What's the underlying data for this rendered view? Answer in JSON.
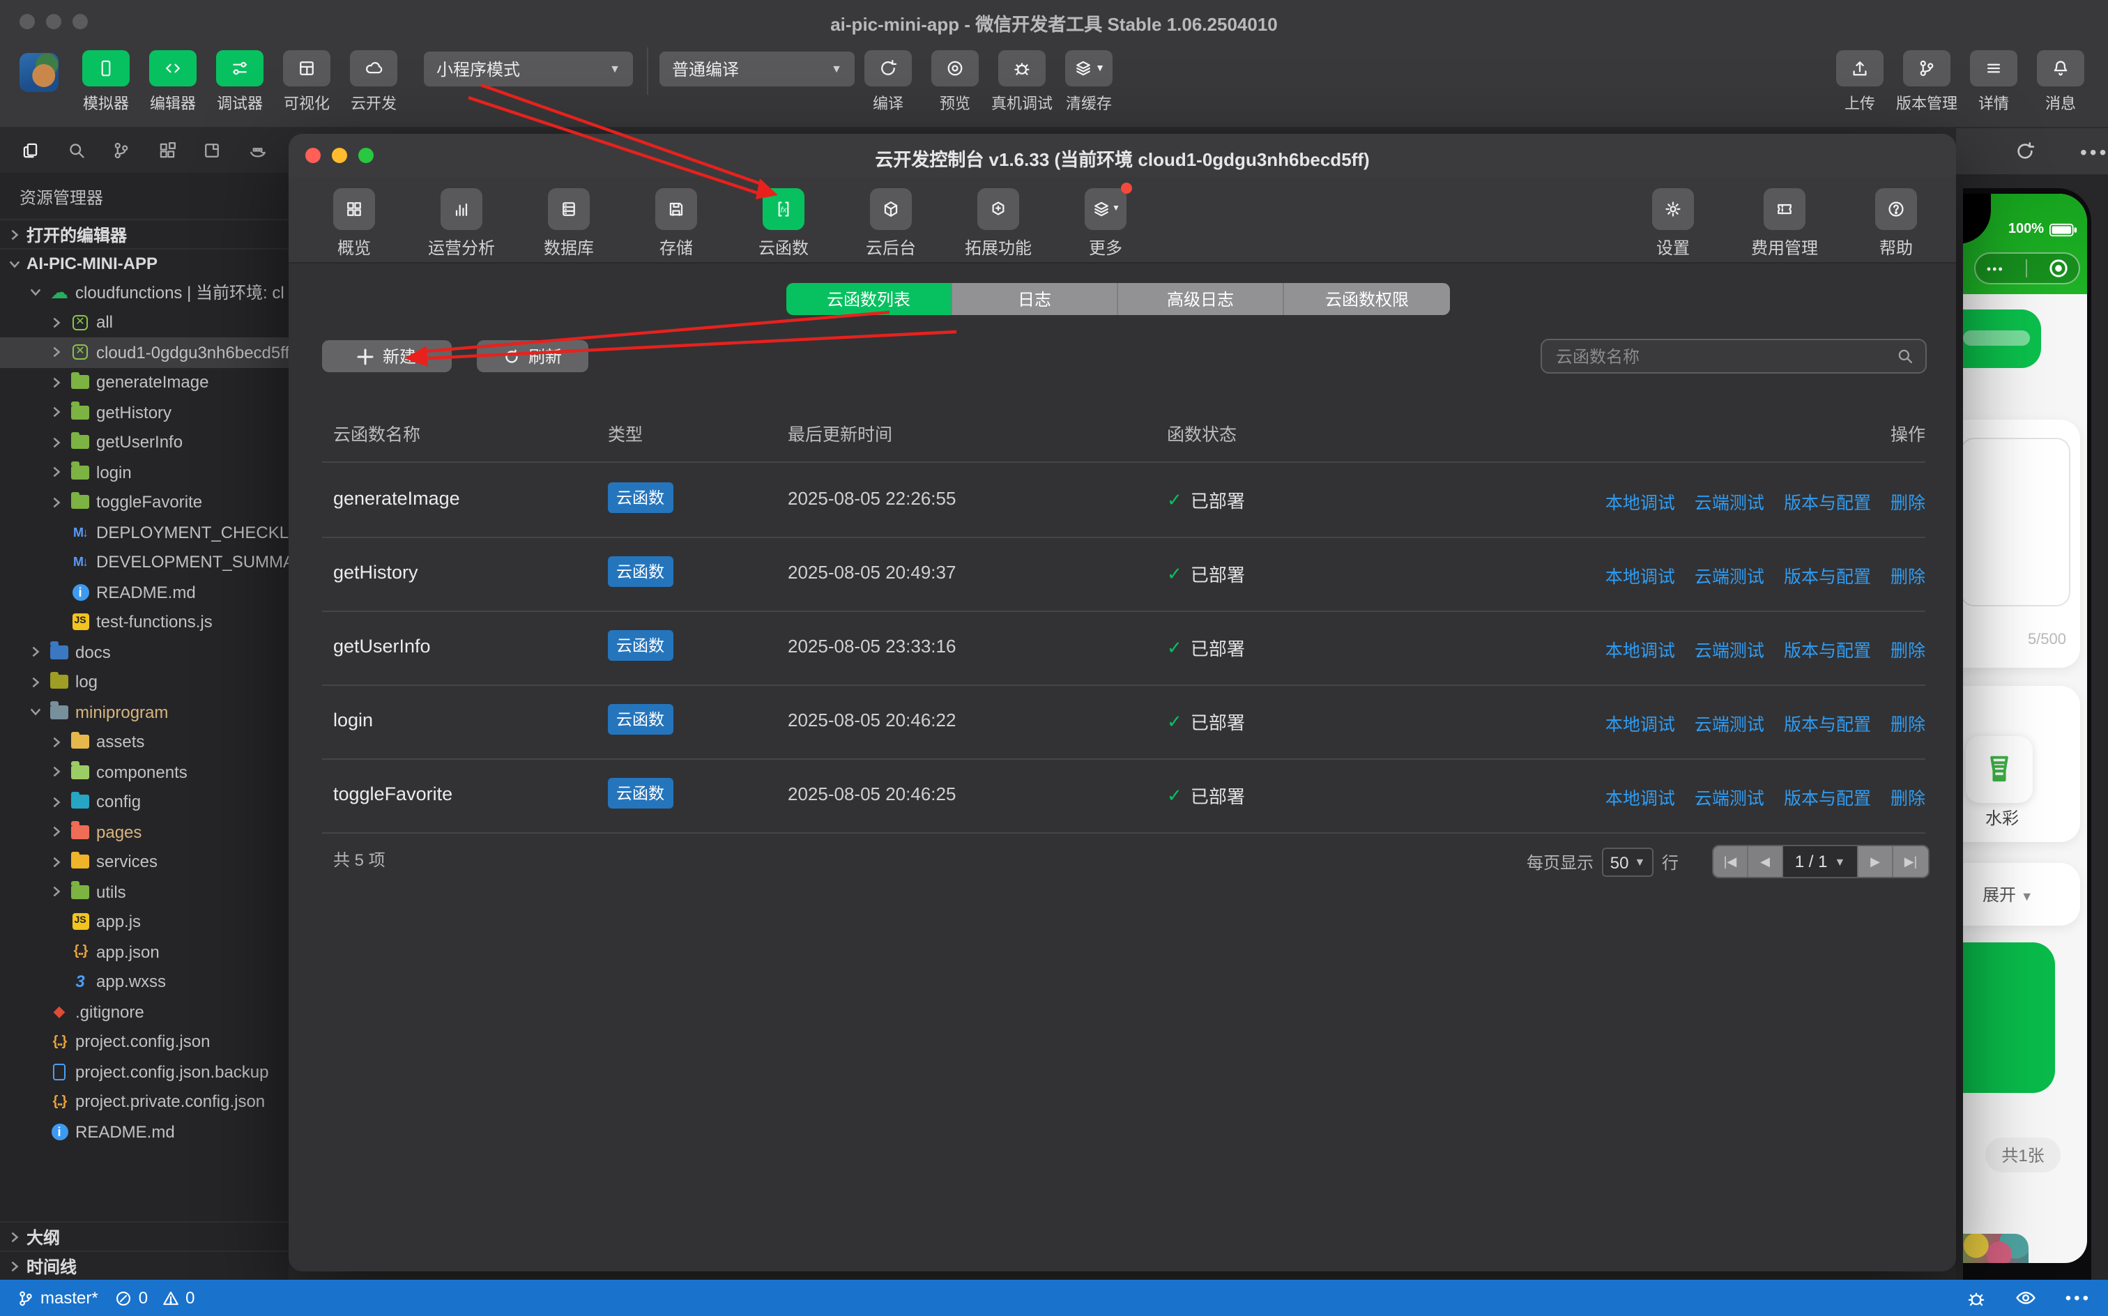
{
  "window": {
    "title": "ai-pic-mini-app - 微信开发者工具 Stable 1.06.2504010",
    "status_bar": {
      "branch": "master*",
      "errors": "0",
      "warnings": "0"
    }
  },
  "toolbar": {
    "left_tools": [
      {
        "name": "simulator",
        "icon": "phone-icon",
        "label": "模拟器",
        "active": true
      },
      {
        "name": "editor",
        "icon": "code-icon",
        "label": "编辑器",
        "active": true
      },
      {
        "name": "debugger",
        "icon": "tune-icon",
        "label": "调试器",
        "active": true
      },
      {
        "name": "visualizer",
        "icon": "layout-icon",
        "label": "可视化",
        "active": false
      },
      {
        "name": "cloud-dev",
        "icon": "cloud-icon",
        "label": "云开发",
        "active": false
      }
    ],
    "mode_select": {
      "value": "小程序模式"
    },
    "compile_select": {
      "value": "普通编译"
    },
    "compile_tools": [
      {
        "name": "compile",
        "icon": "refresh-icon",
        "label": "编译"
      },
      {
        "name": "preview",
        "icon": "eye-icon",
        "label": "预览"
      },
      {
        "name": "device-debug",
        "icon": "bug-icon",
        "label": "真机调试"
      },
      {
        "name": "clear-cache",
        "icon": "layers-icon",
        "label": "清缓存",
        "caret": true
      }
    ],
    "right_tools": [
      {
        "name": "upload",
        "icon": "upload-icon",
        "label": "上传"
      },
      {
        "name": "version-control",
        "icon": "branch-icon",
        "label": "版本管理"
      },
      {
        "name": "details",
        "icon": "menu-icon",
        "label": "详情"
      },
      {
        "name": "messages",
        "icon": "bell-icon",
        "label": "消息"
      }
    ]
  },
  "sidebar": {
    "panel_title": "资源管理器",
    "open_editors": "打开的编辑器",
    "project_name": "AI-PIC-MINI-APP",
    "outline": "大纲",
    "timeline": "时间线",
    "tree": [
      {
        "label": "cloudfunctions | 当前环境: cl",
        "icon": "cloud",
        "indent": 1,
        "chev": "down"
      },
      {
        "label": "all",
        "icon": "env",
        "indent": 2,
        "chev": "right"
      },
      {
        "label": "cloud1-0gdgu3nh6becd5ff",
        "icon": "env",
        "indent": 2,
        "chev": "right",
        "sel": true
      },
      {
        "label": "generateImage",
        "icon": "folder",
        "color": "#7cb342",
        "indent": 2,
        "chev": "right"
      },
      {
        "label": "getHistory",
        "icon": "folder",
        "color": "#7cb342",
        "indent": 2,
        "chev": "right"
      },
      {
        "label": "getUserInfo",
        "icon": "folder",
        "color": "#7cb342",
        "indent": 2,
        "chev": "right"
      },
      {
        "label": "login",
        "icon": "folder",
        "color": "#7cb342",
        "indent": 2,
        "chev": "right"
      },
      {
        "label": "toggleFavorite",
        "icon": "folder",
        "color": "#7cb342",
        "indent": 2,
        "chev": "right"
      },
      {
        "label": "DEPLOYMENT_CHECKLIST",
        "icon": "md",
        "indent": 2,
        "chev": "none"
      },
      {
        "label": "DEVELOPMENT_SUMMARY",
        "icon": "md",
        "indent": 2,
        "chev": "none"
      },
      {
        "label": "README.md",
        "icon": "info",
        "indent": 2,
        "chev": "none"
      },
      {
        "label": "test-functions.js",
        "icon": "js",
        "indent": 2,
        "chev": "none"
      },
      {
        "label": "docs",
        "icon": "folder",
        "color": "#3b78c2",
        "indent": 1,
        "chev": "right"
      },
      {
        "label": "log",
        "icon": "folder",
        "color": "#9e9d24",
        "indent": 1,
        "chev": "right"
      },
      {
        "label": "miniprogram",
        "icon": "folder",
        "color": "#78909c",
        "indent": 1,
        "chev": "down",
        "orange": true
      },
      {
        "label": "assets",
        "icon": "folder",
        "color": "#e6b84c",
        "indent": 2,
        "chev": "right"
      },
      {
        "label": "components",
        "icon": "folder",
        "color": "#9ccc65",
        "indent": 2,
        "chev": "right"
      },
      {
        "label": "config",
        "icon": "folder",
        "color": "#26a6c4",
        "indent": 2,
        "chev": "right"
      },
      {
        "label": "pages",
        "icon": "folder",
        "color": "#ef6c57",
        "indent": 2,
        "chev": "right",
        "orange": true
      },
      {
        "label": "services",
        "icon": "folder",
        "color": "#f0b429",
        "indent": 2,
        "chev": "right"
      },
      {
        "label": "utils",
        "icon": "folder",
        "color": "#7cb342",
        "indent": 2,
        "chev": "right"
      },
      {
        "label": "app.js",
        "icon": "js",
        "indent": 2,
        "chev": "none"
      },
      {
        "label": "app.json",
        "icon": "braces",
        "indent": 2,
        "chev": "none"
      },
      {
        "label": "app.wxss",
        "icon": "css",
        "indent": 2,
        "chev": "none"
      },
      {
        "label": ".gitignore",
        "icon": "git",
        "indent": 1,
        "chev": "none"
      },
      {
        "label": "project.config.json",
        "icon": "braces",
        "indent": 1,
        "chev": "none"
      },
      {
        "label": "project.config.json.backup",
        "icon": "file",
        "indent": 1,
        "chev": "none"
      },
      {
        "label": "project.private.config.json",
        "icon": "braces",
        "indent": 1,
        "chev": "none"
      },
      {
        "label": "README.md",
        "icon": "info",
        "indent": 1,
        "chev": "none"
      }
    ]
  },
  "dialog": {
    "title": "云开发控制台 v1.6.33 (当前环境 cloud1-0gdgu3nh6becd5ff)",
    "tabs": [
      {
        "name": "overview",
        "icon": "grid-icon",
        "label": "概览"
      },
      {
        "name": "analytics",
        "icon": "chart-icon",
        "label": "运营分析"
      },
      {
        "name": "database",
        "icon": "db-icon",
        "label": "数据库"
      },
      {
        "name": "storage",
        "icon": "save-icon",
        "label": "存储"
      },
      {
        "name": "cloud-function",
        "icon": "fx-icon",
        "label": "云函数",
        "active": true
      },
      {
        "name": "cloud-backend",
        "icon": "cube-icon",
        "label": "云后台"
      },
      {
        "name": "extensions",
        "icon": "hexplus-icon",
        "label": "拓展功能"
      },
      {
        "name": "more",
        "icon": "layers-icon",
        "label": "更多",
        "caret": true,
        "badge": true
      }
    ],
    "right_tabs": [
      {
        "name": "settings",
        "icon": "gear-icon",
        "label": "设置"
      },
      {
        "name": "billing",
        "icon": "ticket-icon",
        "label": "费用管理"
      },
      {
        "name": "help",
        "icon": "question-icon",
        "label": "帮助"
      }
    ],
    "subtabs": [
      {
        "label": "云函数列表",
        "active": true
      },
      {
        "label": "日志",
        "active": false
      },
      {
        "label": "高级日志",
        "active": false
      },
      {
        "label": "云函数权限",
        "active": false
      }
    ],
    "new_button": "新建",
    "refresh_button": "刷新",
    "search_placeholder": "云函数名称",
    "table": {
      "headers": [
        "云函数名称",
        "类型",
        "最后更新时间",
        "函数状态",
        "操作"
      ],
      "rows": [
        {
          "name": "generateImage",
          "type": "云函数",
          "updated": "2025-08-05 22:26:55",
          "status": "已部署"
        },
        {
          "name": "getHistory",
          "type": "云函数",
          "updated": "2025-08-05 20:49:37",
          "status": "已部署"
        },
        {
          "name": "getUserInfo",
          "type": "云函数",
          "updated": "2025-08-05 23:33:16",
          "status": "已部署"
        },
        {
          "name": "login",
          "type": "云函数",
          "updated": "2025-08-05 20:46:22",
          "status": "已部署"
        },
        {
          "name": "toggleFavorite",
          "type": "云函数",
          "updated": "2025-08-05 20:46:25",
          "status": "已部署"
        }
      ],
      "actions": [
        "本地调试",
        "云端测试",
        "版本与配置",
        "删除"
      ]
    },
    "footer": {
      "total": "共 5 项",
      "page_size_label": "每页显示",
      "page_size": "50",
      "rows_label": "行",
      "page": "1 / 1"
    }
  },
  "simulator": {
    "battery": "100%",
    "counter": "5/500",
    "style_label": "水彩",
    "expand_label": "展开",
    "count_badge": "共1张",
    "capsule_dots": "•••"
  },
  "colors": {
    "accent_green": "#07c160",
    "badge_blue": "#2575bd",
    "link_blue": "#2f9df5",
    "status_blue": "#1973cd",
    "annotation_red": "#e8211d"
  }
}
